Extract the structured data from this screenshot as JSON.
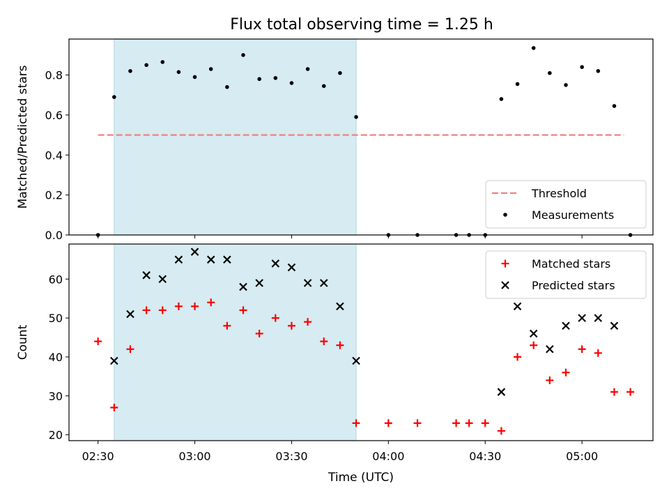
{
  "figure_title": "Flux total observing time = 1.25 h",
  "colors": {
    "shade": "#ADD8E6",
    "threshold": "#F08080",
    "measurements": "#000000",
    "matched": "#FF0000",
    "predicted": "#000000"
  },
  "chart_data": [
    {
      "type": "scatter",
      "panel": "top",
      "title": "Flux total observing time = 1.25 h",
      "ylabel": "Matched/Predicted stars",
      "xlabel": "",
      "xlim": [
        "02:21",
        "05:22"
      ],
      "ylim": [
        0,
        0.98
      ],
      "yticks": [
        0.0,
        0.2,
        0.4,
        0.6,
        0.8
      ],
      "ytick_labels": [
        "0.0",
        "0.2",
        "0.4",
        "0.6",
        "0.8"
      ],
      "shaded_span": [
        "02:35",
        "03:50"
      ],
      "threshold": {
        "name": "Threshold",
        "y": 0.5,
        "x_range": [
          "02:30",
          "05:13"
        ]
      },
      "legend": {
        "placement": "lower right",
        "entries": [
          "Threshold",
          "Measurements"
        ]
      },
      "series": [
        {
          "name": "Measurements",
          "marker": "dot",
          "points": [
            [
              "02:30",
              0.0
            ],
            [
              "02:35",
              0.69
            ],
            [
              "02:40",
              0.82
            ],
            [
              "02:45",
              0.85
            ],
            [
              "02:50",
              0.865
            ],
            [
              "02:55",
              0.815
            ],
            [
              "03:00",
              0.79
            ],
            [
              "03:05",
              0.83
            ],
            [
              "03:10",
              0.74
            ],
            [
              "03:15",
              0.9
            ],
            [
              "03:20",
              0.78
            ],
            [
              "03:25",
              0.785
            ],
            [
              "03:30",
              0.76
            ],
            [
              "03:35",
              0.83
            ],
            [
              "03:40",
              0.745
            ],
            [
              "03:45",
              0.81
            ],
            [
              "03:50",
              0.59
            ],
            [
              "04:00",
              0.0
            ],
            [
              "04:09",
              0.0
            ],
            [
              "04:21",
              0.0
            ],
            [
              "04:25",
              0.0
            ],
            [
              "04:30",
              0.0
            ],
            [
              "04:35",
              0.68
            ],
            [
              "04:40",
              0.755
            ],
            [
              "04:45",
              0.935
            ],
            [
              "04:50",
              0.81
            ],
            [
              "04:55",
              0.75
            ],
            [
              "05:00",
              0.84
            ],
            [
              "05:05",
              0.82
            ],
            [
              "05:10",
              0.645
            ],
            [
              "05:15",
              0.0
            ]
          ]
        }
      ]
    },
    {
      "type": "scatter",
      "panel": "bottom",
      "title": "",
      "xlabel": "Time (UTC)",
      "ylabel": "Count",
      "xlim": [
        "02:21",
        "05:22"
      ],
      "xticks": [
        "02:30",
        "03:00",
        "03:30",
        "04:00",
        "04:30",
        "05:00"
      ],
      "xtick_labels": [
        "02:30",
        "03:00",
        "03:30",
        "04:00",
        "04:30",
        "05:00"
      ],
      "ylim": [
        18.5,
        69
      ],
      "yticks": [
        20,
        30,
        40,
        50,
        60
      ],
      "ytick_labels": [
        "20",
        "30",
        "40",
        "50",
        "60"
      ],
      "shaded_span": [
        "02:35",
        "03:50"
      ],
      "legend": {
        "placement": "upper right",
        "entries": [
          "Matched stars",
          "Predicted stars"
        ]
      },
      "series": [
        {
          "name": "Matched stars",
          "marker": "plus",
          "points": [
            [
              "02:30",
              44
            ],
            [
              "02:35",
              27
            ],
            [
              "02:40",
              42
            ],
            [
              "02:45",
              52
            ],
            [
              "02:50",
              52
            ],
            [
              "02:55",
              53
            ],
            [
              "03:00",
              53
            ],
            [
              "03:05",
              54
            ],
            [
              "03:10",
              48
            ],
            [
              "03:15",
              52
            ],
            [
              "03:20",
              46
            ],
            [
              "03:25",
              50
            ],
            [
              "03:30",
              48
            ],
            [
              "03:35",
              49
            ],
            [
              "03:40",
              44
            ],
            [
              "03:45",
              43
            ],
            [
              "03:50",
              23
            ],
            [
              "04:00",
              23
            ],
            [
              "04:09",
              23
            ],
            [
              "04:21",
              23
            ],
            [
              "04:25",
              23
            ],
            [
              "04:30",
              23
            ],
            [
              "04:35",
              21
            ],
            [
              "04:40",
              40
            ],
            [
              "04:45",
              43
            ],
            [
              "04:50",
              34
            ],
            [
              "04:55",
              36
            ],
            [
              "05:00",
              42
            ],
            [
              "05:05",
              41
            ],
            [
              "05:10",
              31
            ],
            [
              "05:15",
              31
            ]
          ]
        },
        {
          "name": "Predicted stars",
          "marker": "x",
          "points": [
            [
              "02:35",
              39
            ],
            [
              "02:40",
              51
            ],
            [
              "02:45",
              61
            ],
            [
              "02:50",
              60
            ],
            [
              "02:55",
              65
            ],
            [
              "03:00",
              67
            ],
            [
              "03:05",
              65
            ],
            [
              "03:10",
              65
            ],
            [
              "03:15",
              58
            ],
            [
              "03:20",
              59
            ],
            [
              "03:25",
              64
            ],
            [
              "03:30",
              63
            ],
            [
              "03:35",
              59
            ],
            [
              "03:40",
              59
            ],
            [
              "03:45",
              53
            ],
            [
              "03:50",
              39
            ],
            [
              "04:35",
              31
            ],
            [
              "04:40",
              53
            ],
            [
              "04:45",
              46
            ],
            [
              "04:50",
              42
            ],
            [
              "04:55",
              48
            ],
            [
              "05:00",
              50
            ],
            [
              "05:05",
              50
            ],
            [
              "05:10",
              48
            ]
          ]
        }
      ]
    }
  ]
}
